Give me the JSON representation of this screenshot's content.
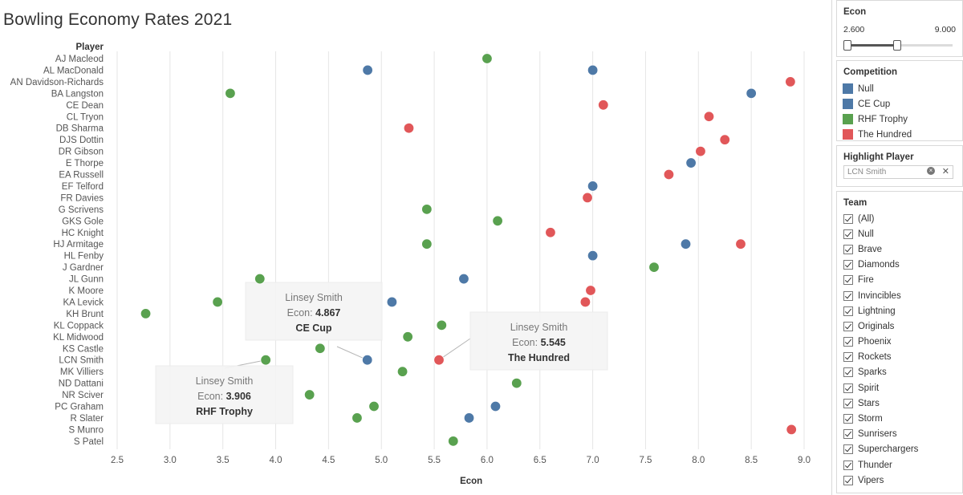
{
  "chart_data": {
    "type": "scatter",
    "title": "Bowling Economy Rates 2021",
    "xlabel": "Econ",
    "ylabel": "Player",
    "xlim": [
      2.35,
      9.2
    ],
    "xticks": [
      "2.5",
      "3.0",
      "3.5",
      "4.0",
      "4.5",
      "5.0",
      "5.5",
      "6.0",
      "6.5",
      "7.0",
      "7.5",
      "8.0",
      "8.5",
      "9.0"
    ],
    "players": [
      "AJ Macleod",
      "AL MacDonald",
      "AN Davidson-Richards",
      "BA Langston",
      "CE Dean",
      "CL Tryon",
      "DB Sharma",
      "DJS Dottin",
      "DR Gibson",
      "E Thorpe",
      "EA Russell",
      "EF Telford",
      "FR Davies",
      "G Scrivens",
      "GKS Gole",
      "HC Knight",
      "HJ Armitage",
      "HL Fenby",
      "J Gardner",
      "JL Gunn",
      "K Moore",
      "KA Levick",
      "KH Brunt",
      "KL Coppack",
      "KL Midwood",
      "KS Castle",
      "LCN Smith",
      "MK Villiers",
      "ND Dattani",
      "NR Sciver",
      "PC Graham",
      "R Slater",
      "S Munro",
      "S Patel"
    ],
    "series": [
      {
        "name": "CE Cup",
        "points": [
          {
            "player": "AL MacDonald",
            "x": 4.87
          },
          {
            "player": "AL MacDonald",
            "x": 7.0
          },
          {
            "player": "BA Langston",
            "x": 8.5
          },
          {
            "player": "E Thorpe",
            "x": 7.93
          },
          {
            "player": "EF Telford",
            "x": 7.0
          },
          {
            "player": "HJ Armitage",
            "x": 7.88
          },
          {
            "player": "HL Fenby",
            "x": 7.0
          },
          {
            "player": "JL Gunn",
            "x": 5.78
          },
          {
            "player": "KA Levick",
            "x": 5.1
          },
          {
            "player": "LCN Smith",
            "x": 4.867
          },
          {
            "player": "PC Graham",
            "x": 6.08
          },
          {
            "player": "R Slater",
            "x": 5.83
          }
        ]
      },
      {
        "name": "RHF Trophy",
        "points": [
          {
            "player": "AJ Macleod",
            "x": 6.0
          },
          {
            "player": "BA Langston",
            "x": 3.57
          },
          {
            "player": "G Scrivens",
            "x": 5.43
          },
          {
            "player": "GKS Gole",
            "x": 6.1
          },
          {
            "player": "HJ Armitage",
            "x": 5.43
          },
          {
            "player": "J Gardner",
            "x": 7.58
          },
          {
            "player": "JL Gunn",
            "x": 3.85
          },
          {
            "player": "KA Levick",
            "x": 3.45
          },
          {
            "player": "KH Brunt",
            "x": 2.77
          },
          {
            "player": "KL Coppack",
            "x": 5.57
          },
          {
            "player": "KL Midwood",
            "x": 5.25
          },
          {
            "player": "KS Castle",
            "x": 4.42
          },
          {
            "player": "LCN Smith",
            "x": 3.906
          },
          {
            "player": "MK Villiers",
            "x": 5.2
          },
          {
            "player": "ND Dattani",
            "x": 6.28
          },
          {
            "player": "NR Sciver",
            "x": 4.32
          },
          {
            "player": "PC Graham",
            "x": 4.93
          },
          {
            "player": "R Slater",
            "x": 4.77
          },
          {
            "player": "S Patel",
            "x": 5.68
          }
        ]
      },
      {
        "name": "The Hundred",
        "points": [
          {
            "player": "AN Davidson-Richards",
            "x": 8.87
          },
          {
            "player": "CE Dean",
            "x": 7.1
          },
          {
            "player": "CL Tryon",
            "x": 8.1
          },
          {
            "player": "DB Sharma",
            "x": 5.26
          },
          {
            "player": "DJS Dottin",
            "x": 8.25
          },
          {
            "player": "DR Gibson",
            "x": 8.02
          },
          {
            "player": "EA Russell",
            "x": 7.72
          },
          {
            "player": "FR Davies",
            "x": 6.95
          },
          {
            "player": "HC Knight",
            "x": 6.6
          },
          {
            "player": "HJ Armitage",
            "x": 8.4
          },
          {
            "player": "K Moore",
            "x": 6.98
          },
          {
            "player": "KA Levick",
            "x": 6.93
          },
          {
            "player": "LCN Smith",
            "x": 5.545
          },
          {
            "player": "S Munro",
            "x": 8.88
          }
        ]
      }
    ],
    "tooltips": [
      {
        "player": "Linsey Smith",
        "econ_label": "Econ:",
        "econ": "4.867",
        "competition": "CE Cup"
      },
      {
        "player": "Linsey Smith",
        "econ_label": "Econ:",
        "econ": "5.545",
        "competition": "The Hundred"
      },
      {
        "player": "Linsey Smith",
        "econ_label": "Econ:",
        "econ": "3.906",
        "competition": "RHF Trophy"
      }
    ]
  },
  "colors": {
    "CE Cup": "#4e79a7",
    "RHF Trophy": "#59a14f",
    "The Hundred": "#e15759",
    "Null": "#4e79a7",
    "gridline": "#e6e6e6"
  },
  "filters": {
    "econ": {
      "title": "Econ",
      "min_label": "2.600",
      "max_label": "9.000",
      "min": 2.6,
      "max": 9.0
    },
    "competition": {
      "title": "Competition",
      "items": [
        {
          "label": "Null",
          "color": "#4e79a7"
        },
        {
          "label": "CE Cup",
          "color": "#4e79a7"
        },
        {
          "label": "RHF Trophy",
          "color": "#59a14f"
        },
        {
          "label": "The Hundred",
          "color": "#e15759"
        }
      ]
    },
    "highlight": {
      "title": "Highlight Player",
      "value": "LCN Smith"
    },
    "team": {
      "title": "Team",
      "items": [
        "(All)",
        "Null",
        "Brave",
        "Diamonds",
        "Fire",
        "Invincibles",
        "Lightning",
        "Originals",
        "Phoenix",
        "Rockets",
        "Sparks",
        "Spirit",
        "Stars",
        "Storm",
        "Sunrisers",
        "Superchargers",
        "Thunder",
        "Vipers"
      ]
    }
  }
}
